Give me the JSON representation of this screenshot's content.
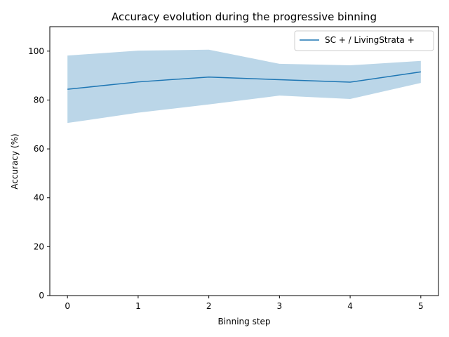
{
  "chart_data": {
    "type": "line",
    "title": "Accuracy evolution during the progressive binning",
    "xlabel": "Binning step",
    "ylabel": "Accuracy (%)",
    "x": [
      0,
      1,
      2,
      3,
      4,
      5
    ],
    "xticks": [
      "0",
      "1",
      "2",
      "3",
      "4",
      "5"
    ],
    "yticks": [
      "0",
      "20",
      "40",
      "60",
      "80",
      "100"
    ],
    "xlim": [
      -0.25,
      5.25
    ],
    "ylim": [
      0,
      110
    ],
    "grid": false,
    "legend_position": "top-right",
    "series": [
      {
        "name": "SC + / LivingStrata +",
        "color": "#1f77b4",
        "values": [
          84.4,
          87.4,
          89.4,
          88.3,
          87.3,
          91.5
        ],
        "band_lower": [
          70.6,
          74.8,
          78.2,
          81.8,
          80.4,
          87.0
        ],
        "band_upper": [
          98.2,
          100.2,
          100.6,
          94.8,
          94.2,
          96.0
        ],
        "band_color": "#1f77b4",
        "band_alpha": 0.3
      }
    ]
  }
}
